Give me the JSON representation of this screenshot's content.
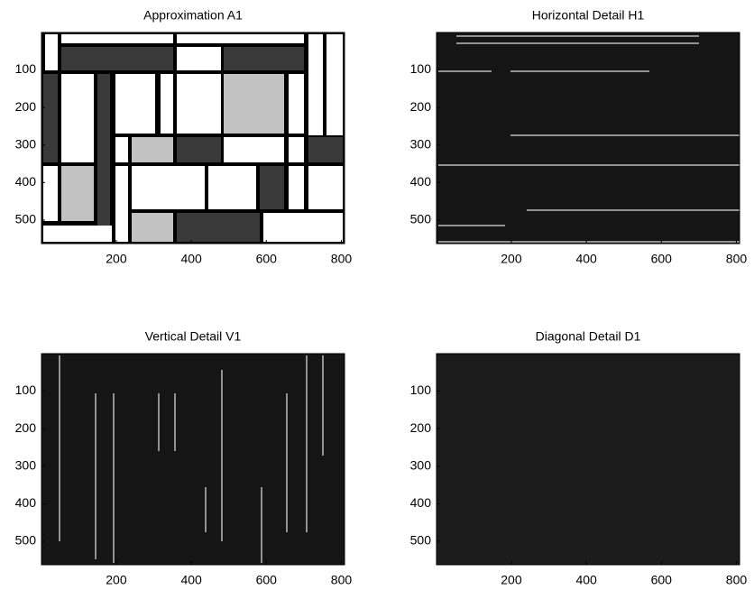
{
  "chart_data": [
    {
      "type": "image",
      "title": "Approximation A1",
      "xlim": [
        0.5,
        808.5
      ],
      "ylim": [
        0.5,
        562.5
      ],
      "xticks": [
        200,
        400,
        600,
        800
      ],
      "yticks": [
        100,
        200,
        300,
        400,
        500
      ]
    },
    {
      "type": "image",
      "title": "Horizontal Detail H1",
      "xlim": [
        0.5,
        808.5
      ],
      "ylim": [
        0.5,
        562.5
      ],
      "xticks": [
        200,
        400,
        600,
        800
      ],
      "yticks": [
        100,
        200,
        300,
        400,
        500
      ]
    },
    {
      "type": "image",
      "title": "Vertical Detail V1",
      "xlim": [
        0.5,
        808.5
      ],
      "ylim": [
        0.5,
        562.5
      ],
      "xticks": [
        200,
        400,
        600,
        800
      ],
      "yticks": [
        100,
        200,
        300,
        400,
        500
      ]
    },
    {
      "type": "image",
      "title": "Diagonal Detail D1",
      "xlim": [
        0.5,
        808.5
      ],
      "ylim": [
        0.5,
        562.5
      ],
      "xticks": [
        200,
        400,
        600,
        800
      ],
      "yticks": [
        100,
        200,
        300,
        400,
        500
      ]
    }
  ]
}
